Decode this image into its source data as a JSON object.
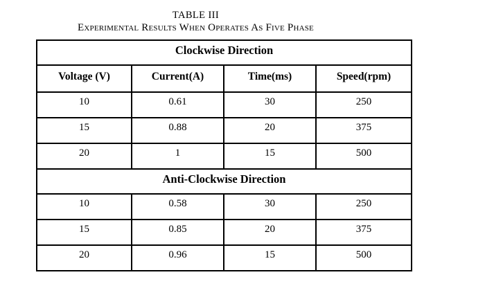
{
  "caption": {
    "label": "TABLE III",
    "title": "Experimental Results When Operates As Five Phase"
  },
  "table": {
    "columns": [
      "Voltage (V)",
      "Current(A)",
      "Time(ms)",
      "Speed(rpm)"
    ],
    "sections": [
      {
        "header": "Clockwise Direction",
        "rows": [
          [
            "10",
            "0.61",
            "30",
            "250"
          ],
          [
            "15",
            "0.88",
            "20",
            "375"
          ],
          [
            "20",
            "1",
            "15",
            "500"
          ]
        ]
      },
      {
        "header": "Anti-Clockwise Direction",
        "rows": [
          [
            "10",
            "0.58",
            "30",
            "250"
          ],
          [
            "15",
            "0.85",
            "20",
            "375"
          ],
          [
            "20",
            "0.96",
            "15",
            "500"
          ]
        ]
      }
    ]
  },
  "chart_data": {
    "type": "table",
    "title": "TABLE III — Experimental Results When Operates As Five Phase",
    "columns": [
      "Voltage (V)",
      "Current(A)",
      "Time(ms)",
      "Speed(rpm)"
    ],
    "sections": [
      {
        "name": "Clockwise Direction",
        "rows": [
          [
            10,
            0.61,
            30,
            250
          ],
          [
            15,
            0.88,
            20,
            375
          ],
          [
            20,
            1,
            15,
            500
          ]
        ]
      },
      {
        "name": "Anti-Clockwise Direction",
        "rows": [
          [
            10,
            0.58,
            30,
            250
          ],
          [
            15,
            0.85,
            20,
            375
          ],
          [
            20,
            0.96,
            15,
            500
          ]
        ]
      }
    ]
  }
}
